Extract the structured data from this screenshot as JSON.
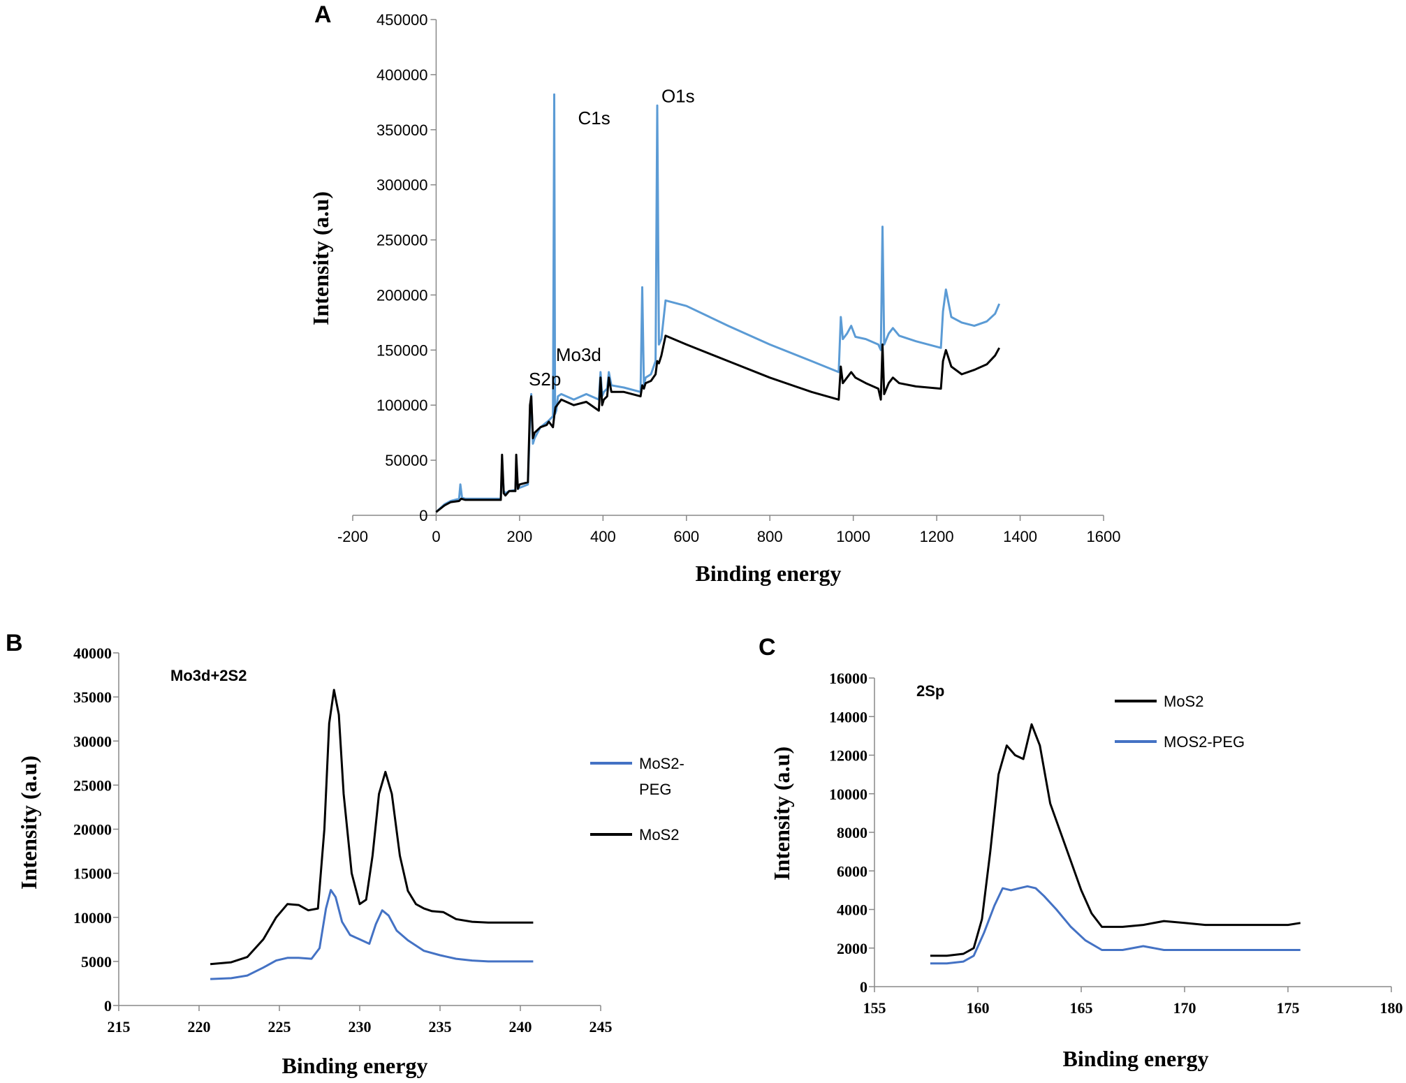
{
  "chart_data": [
    {
      "panel": "A",
      "type": "line",
      "xlabel": "Binding energy",
      "ylabel": "Intensity (a.u)",
      "xlim": [
        -200,
        1600
      ],
      "ylim": [
        0,
        450000
      ],
      "xticks": [
        -200,
        0,
        200,
        400,
        600,
        800,
        1000,
        1200,
        1400,
        1600
      ],
      "yticks": [
        0,
        50000,
        100000,
        150000,
        200000,
        250000,
        300000,
        350000,
        400000,
        450000
      ],
      "colors": {
        "blue": "#5b9bd5",
        "black": "#000000"
      },
      "annotations": [
        {
          "text": "S2p",
          "x": 222,
          "y": 118000
        },
        {
          "text": "Mo3d",
          "x": 287,
          "y": 140000
        },
        {
          "text": "C1s",
          "x": 340,
          "y": 355000
        },
        {
          "text": "O1s",
          "x": 540,
          "y": 375000
        }
      ],
      "series": [
        {
          "name": "blue",
          "color": "#5b9bd5",
          "x": [
            0,
            20,
            35,
            55,
            58,
            62,
            70,
            100,
            155,
            158,
            162,
            166,
            175,
            190,
            192,
            196,
            200,
            220,
            225,
            228,
            232,
            236,
            250,
            270,
            280,
            283,
            285,
            288,
            292,
            300,
            330,
            360,
            390,
            394,
            398,
            402,
            410,
            414,
            420,
            450,
            490,
            494,
            498,
            502,
            515,
            526,
            530,
            534,
            540,
            550,
            600,
            700,
            800,
            900,
            965,
            970,
            975,
            985,
            995,
            1005,
            1030,
            1060,
            1066,
            1070,
            1074,
            1085,
            1095,
            1110,
            1150,
            1210,
            1215,
            1222,
            1235,
            1260,
            1290,
            1320,
            1340,
            1350
          ],
          "y": [
            3000,
            10000,
            13000,
            15000,
            28000,
            16000,
            15000,
            15000,
            15000,
            45000,
            22000,
            20000,
            22000,
            23000,
            40000,
            24000,
            25000,
            28000,
            85000,
            110000,
            65000,
            70000,
            80000,
            86000,
            90000,
            382000,
            92000,
            95000,
            108000,
            110000,
            105000,
            110000,
            105000,
            130000,
            108000,
            112000,
            115000,
            130000,
            118000,
            116000,
            112000,
            207000,
            118000,
            125000,
            128000,
            140000,
            372000,
            155000,
            160000,
            195000,
            190000,
            172000,
            155000,
            140000,
            130000,
            180000,
            160000,
            165000,
            172000,
            162000,
            160000,
            155000,
            150000,
            262000,
            155000,
            165000,
            170000,
            163000,
            158000,
            152000,
            185000,
            205000,
            180000,
            175000,
            172000,
            176000,
            183000,
            192000
          ]
        },
        {
          "name": "black",
          "color": "#000000",
          "x": [
            0,
            20,
            35,
            55,
            60,
            70,
            100,
            155,
            158,
            162,
            166,
            175,
            190,
            192,
            196,
            200,
            220,
            225,
            228,
            232,
            236,
            250,
            265,
            270,
            280,
            283,
            286,
            290,
            300,
            330,
            360,
            390,
            394,
            398,
            402,
            410,
            414,
            420,
            450,
            490,
            494,
            498,
            502,
            515,
            526,
            530,
            534,
            540,
            550,
            600,
            700,
            800,
            900,
            965,
            970,
            975,
            985,
            995,
            1005,
            1030,
            1060,
            1066,
            1070,
            1074,
            1085,
            1095,
            1110,
            1150,
            1210,
            1215,
            1222,
            1235,
            1260,
            1290,
            1320,
            1340,
            1350
          ],
          "y": [
            3000,
            9000,
            12000,
            13000,
            15000,
            14000,
            14000,
            14000,
            55000,
            20000,
            18000,
            22000,
            22000,
            55000,
            24000,
            28000,
            30000,
            100000,
            108000,
            70000,
            75000,
            80000,
            82000,
            85000,
            80000,
            90000,
            98000,
            100000,
            105000,
            100000,
            103000,
            95000,
            125000,
            100000,
            105000,
            108000,
            125000,
            112000,
            112000,
            108000,
            118000,
            115000,
            120000,
            122000,
            128000,
            140000,
            138000,
            145000,
            163000,
            155000,
            140000,
            125000,
            112000,
            105000,
            135000,
            120000,
            125000,
            130000,
            125000,
            120000,
            115000,
            105000,
            155000,
            110000,
            120000,
            125000,
            120000,
            117000,
            115000,
            140000,
            150000,
            135000,
            128000,
            132000,
            137000,
            145000,
            152000
          ]
        }
      ]
    },
    {
      "panel": "B",
      "type": "line",
      "title": "Mo3d+2S2",
      "xlabel": "Binding energy",
      "ylabel": "Intensity (a.u)",
      "xlim": [
        215,
        245
      ],
      "ylim": [
        0,
        40000
      ],
      "xticks": [
        215,
        220,
        225,
        230,
        235,
        240,
        245
      ],
      "yticks": [
        0,
        5000,
        10000,
        15000,
        20000,
        25000,
        30000,
        35000,
        40000
      ],
      "legend": [
        "MoS2-PEG",
        "MoS2"
      ],
      "legend_lines": [
        "MoS2-",
        "PEG"
      ],
      "series": [
        {
          "name": "MoS2-PEG",
          "color": "#4472c4",
          "x": [
            220.7,
            222,
            223,
            224,
            224.8,
            225.5,
            226.2,
            227,
            227.5,
            227.9,
            228.2,
            228.5,
            228.9,
            229.4,
            230,
            230.6,
            231,
            231.4,
            231.8,
            232.3,
            233,
            234,
            235,
            236,
            237,
            238,
            239,
            240,
            240.8
          ],
          "y": [
            3000,
            3100,
            3400,
            4300,
            5100,
            5400,
            5400,
            5300,
            6500,
            11000,
            13100,
            12300,
            9500,
            8000,
            7500,
            7000,
            9200,
            10800,
            10200,
            8500,
            7400,
            6200,
            5700,
            5300,
            5100,
            5000,
            5000,
            5000,
            5000
          ]
        },
        {
          "name": "MoS2",
          "color": "#000000",
          "x": [
            220.7,
            222,
            223,
            224,
            224.8,
            225.5,
            226.2,
            226.8,
            227.4,
            227.8,
            228.1,
            228.4,
            228.7,
            229,
            229.5,
            230,
            230.4,
            230.8,
            231.2,
            231.6,
            232,
            232.5,
            233,
            233.5,
            234,
            234.5,
            235.2,
            236,
            237,
            238,
            239,
            240,
            240.8
          ],
          "y": [
            4700,
            4900,
            5500,
            7500,
            10000,
            11500,
            11400,
            10800,
            11000,
            20000,
            32000,
            35800,
            33000,
            24000,
            15000,
            11500,
            12000,
            17000,
            24000,
            26500,
            24000,
            17000,
            13000,
            11500,
            11000,
            10700,
            10600,
            9800,
            9500,
            9400,
            9400,
            9400,
            9400
          ]
        }
      ]
    },
    {
      "panel": "C",
      "type": "line",
      "title": "2Sp",
      "xlabel": "Binding energy",
      "ylabel": "Intensity (a.u)",
      "xlim": [
        155,
        180
      ],
      "ylim": [
        0,
        16000
      ],
      "xticks": [
        155,
        160,
        165,
        170,
        175,
        180
      ],
      "yticks": [
        0,
        2000,
        4000,
        6000,
        8000,
        10000,
        12000,
        14000,
        16000
      ],
      "legend": [
        "MoS2",
        "MOS2-PEG"
      ],
      "series": [
        {
          "name": "MoS2",
          "color": "#000000",
          "x": [
            157.7,
            158.5,
            159.3,
            159.8,
            160.2,
            160.6,
            161,
            161.4,
            161.8,
            162.2,
            162.6,
            163,
            163.5,
            164,
            164.5,
            165,
            165.5,
            166,
            167,
            168,
            169,
            170,
            171,
            172,
            173,
            174,
            175,
            175.6
          ],
          "y": [
            1600,
            1600,
            1700,
            2000,
            3500,
            7000,
            11000,
            12500,
            12000,
            11800,
            13600,
            12500,
            9500,
            8000,
            6500,
            5000,
            3800,
            3100,
            3100,
            3200,
            3400,
            3300,
            3200,
            3200,
            3200,
            3200,
            3200,
            3300
          ]
        },
        {
          "name": "MOS2-PEG",
          "color": "#4472c4",
          "x": [
            157.7,
            158.5,
            159.3,
            159.8,
            160.3,
            160.8,
            161.2,
            161.6,
            162,
            162.4,
            162.8,
            163.2,
            163.8,
            164.5,
            165.2,
            166,
            167,
            168,
            169,
            170,
            171,
            172,
            173,
            174,
            175,
            175.6
          ],
          "y": [
            1200,
            1200,
            1300,
            1600,
            2800,
            4200,
            5100,
            5000,
            5100,
            5200,
            5100,
            4700,
            4000,
            3100,
            2400,
            1900,
            1900,
            2100,
            1900,
            1900,
            1900,
            1900,
            1900,
            1900,
            1900,
            1900
          ]
        }
      ]
    }
  ]
}
